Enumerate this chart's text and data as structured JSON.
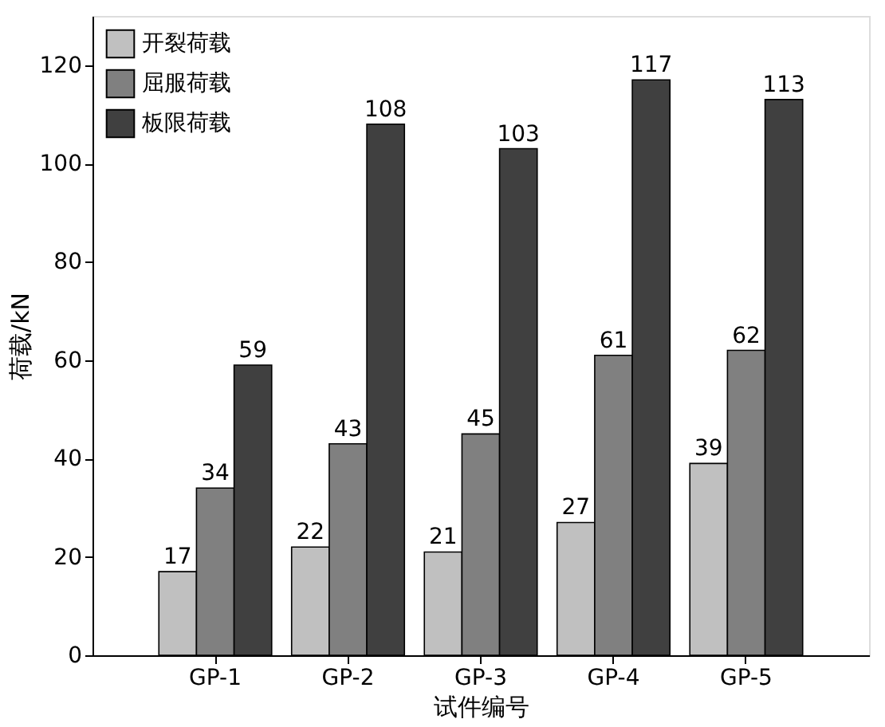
{
  "chart_data": {
    "type": "bar",
    "xlabel": "试件编号",
    "ylabel": "荷载/kN",
    "categories": [
      "GP-1",
      "GP-2",
      "GP-3",
      "GP-4",
      "GP-5"
    ],
    "series": [
      {
        "name": "开裂荷载",
        "color": "#c0c0c0",
        "values": [
          17,
          22,
          21,
          27,
          39
        ]
      },
      {
        "name": "屈服荷载",
        "color": "#808080",
        "values": [
          34,
          43,
          45,
          61,
          62
        ]
      },
      {
        "name": "板限荷载",
        "color": "#404040",
        "values": [
          59,
          108,
          103,
          117,
          113
        ]
      }
    ],
    "ylim": [
      0,
      130
    ],
    "yticks": [
      0,
      20,
      40,
      60,
      80,
      100,
      120
    ],
    "data_labels": true,
    "legend": "top left",
    "grid": false
  }
}
